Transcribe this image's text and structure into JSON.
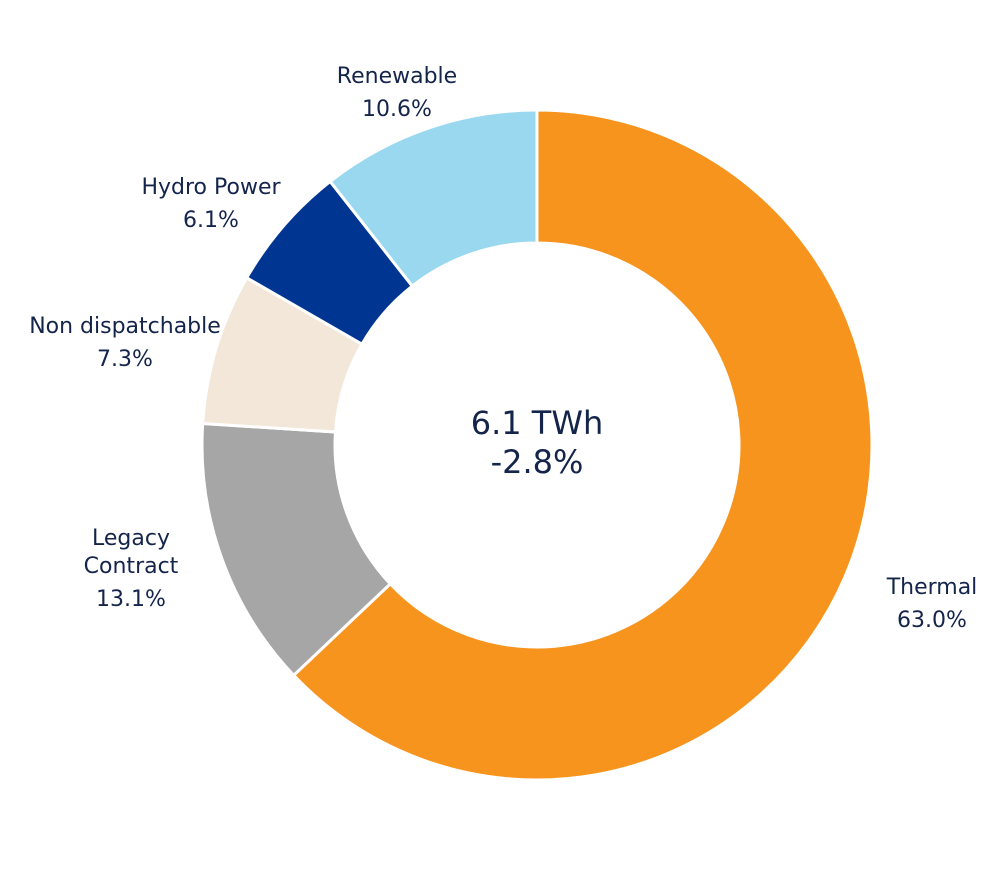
{
  "center": {
    "total": "6.1 TWh",
    "change": "-2.8%"
  },
  "chart_data": {
    "type": "pie",
    "donut": true,
    "slices": [
      {
        "key": "thermal",
        "label_lines": [
          "Thermal"
        ],
        "percent_label": "63.0%",
        "value": 63.0,
        "color": "#f7941e"
      },
      {
        "key": "legacy",
        "label_lines": [
          "Legacy",
          "Contract"
        ],
        "percent_label": "13.1%",
        "value": 13.1,
        "color": "#a6a6a6"
      },
      {
        "key": "nondispatch",
        "label_lines": [
          "Non dispatchable"
        ],
        "percent_label": "7.3%",
        "value": 7.3,
        "color": "#f2e7d9"
      },
      {
        "key": "hydro",
        "label_lines": [
          "Hydro Power"
        ],
        "percent_label": "6.1%",
        "value": 6.1,
        "color": "#003591"
      },
      {
        "key": "renewable",
        "label_lines": [
          "Renewable"
        ],
        "percent_label": "10.6%",
        "value": 10.6,
        "color": "#9ad8ef"
      }
    ]
  }
}
